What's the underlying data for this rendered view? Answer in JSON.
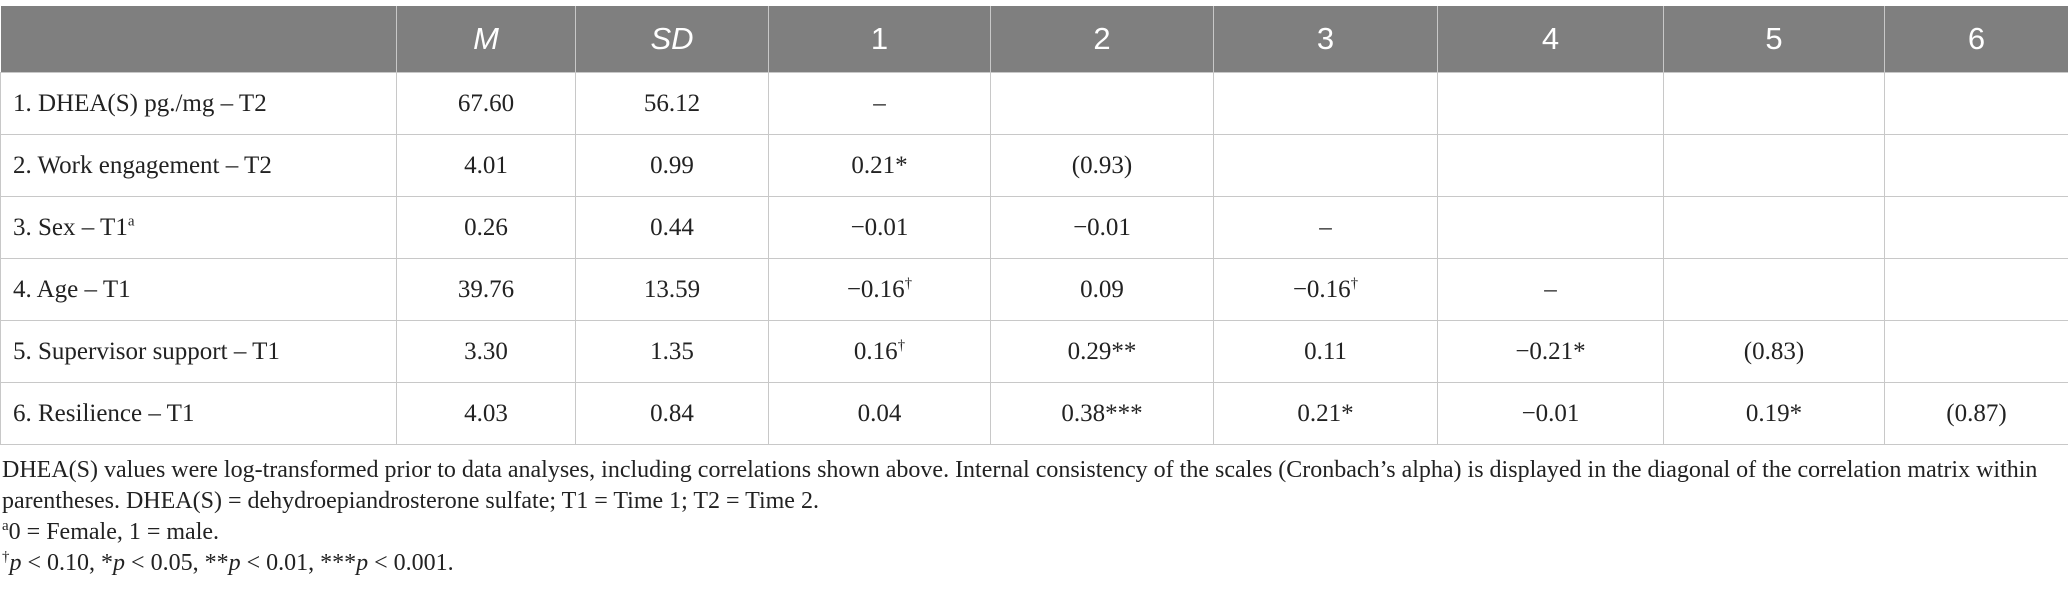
{
  "table": {
    "headers": [
      "",
      "M",
      "SD",
      "1",
      "2",
      "3",
      "4",
      "5",
      "6"
    ],
    "rows": [
      {
        "label": "1. DHEA(S) pg./mg – T2",
        "label_sup": "",
        "m": "67.60",
        "sd": "56.12",
        "cells": [
          {
            "v": "–",
            "s": ""
          },
          {
            "v": "",
            "s": ""
          },
          {
            "v": "",
            "s": ""
          },
          {
            "v": "",
            "s": ""
          },
          {
            "v": "",
            "s": ""
          },
          {
            "v": "",
            "s": ""
          }
        ]
      },
      {
        "label": "2. Work engagement – T2",
        "label_sup": "",
        "m": "4.01",
        "sd": "0.99",
        "cells": [
          {
            "v": "0.21*",
            "s": ""
          },
          {
            "v": "(0.93)",
            "s": ""
          },
          {
            "v": "",
            "s": ""
          },
          {
            "v": "",
            "s": ""
          },
          {
            "v": "",
            "s": ""
          },
          {
            "v": "",
            "s": ""
          }
        ]
      },
      {
        "label": "3. Sex – T1",
        "label_sup": "a",
        "m": "0.26",
        "sd": "0.44",
        "cells": [
          {
            "v": "−0.01",
            "s": ""
          },
          {
            "v": "−0.01",
            "s": ""
          },
          {
            "v": "–",
            "s": ""
          },
          {
            "v": "",
            "s": ""
          },
          {
            "v": "",
            "s": ""
          },
          {
            "v": "",
            "s": ""
          }
        ]
      },
      {
        "label": "4. Age – T1",
        "label_sup": "",
        "m": "39.76",
        "sd": "13.59",
        "cells": [
          {
            "v": "−0.16",
            "s": "†"
          },
          {
            "v": "0.09",
            "s": ""
          },
          {
            "v": "−0.16",
            "s": "†"
          },
          {
            "v": "–",
            "s": ""
          },
          {
            "v": "",
            "s": ""
          },
          {
            "v": "",
            "s": ""
          }
        ]
      },
      {
        "label": "5. Supervisor support – T1",
        "label_sup": "",
        "m": "3.30",
        "sd": "1.35",
        "cells": [
          {
            "v": "0.16",
            "s": "†"
          },
          {
            "v": "0.29**",
            "s": ""
          },
          {
            "v": "0.11",
            "s": ""
          },
          {
            "v": "−0.21*",
            "s": ""
          },
          {
            "v": "(0.83)",
            "s": ""
          },
          {
            "v": "",
            "s": ""
          }
        ]
      },
      {
        "label": "6. Resilience – T1",
        "label_sup": "",
        "m": "4.03",
        "sd": "0.84",
        "cells": [
          {
            "v": "0.04",
            "s": ""
          },
          {
            "v": "0.38***",
            "s": ""
          },
          {
            "v": "0.21*",
            "s": ""
          },
          {
            "v": "−0.01",
            "s": ""
          },
          {
            "v": "0.19*",
            "s": ""
          },
          {
            "v": "(0.87)",
            "s": ""
          }
        ]
      }
    ]
  },
  "notes": {
    "paragraph": "DHEA(S) values were log-transformed prior to data analyses, including correlations shown above. Internal consistency of the scales (Cronbach’s alpha) is displayed in the diagonal of the correlation matrix within parentheses. DHEA(S) = dehydroepiandrosterone sulfate; T1 = Time 1; T2 = Time 2.",
    "sex_note_sup": "a",
    "sex_note": "0 = Female, 1 = male.",
    "sig": [
      {
        "pre": "",
        "sup": "†",
        "p": "p",
        "rest": " < 0.10, "
      },
      {
        "pre": "*",
        "sup": "",
        "p": "p",
        "rest": " < 0.05, "
      },
      {
        "pre": "**",
        "sup": "",
        "p": "p",
        "rest": " < 0.01, "
      },
      {
        "pre": "***",
        "sup": "",
        "p": "p",
        "rest": " < 0.001."
      }
    ]
  },
  "colors": {
    "header_bg": "#7f7f7f",
    "header_text": "#ffffff",
    "grid": "#c8c8c8"
  }
}
